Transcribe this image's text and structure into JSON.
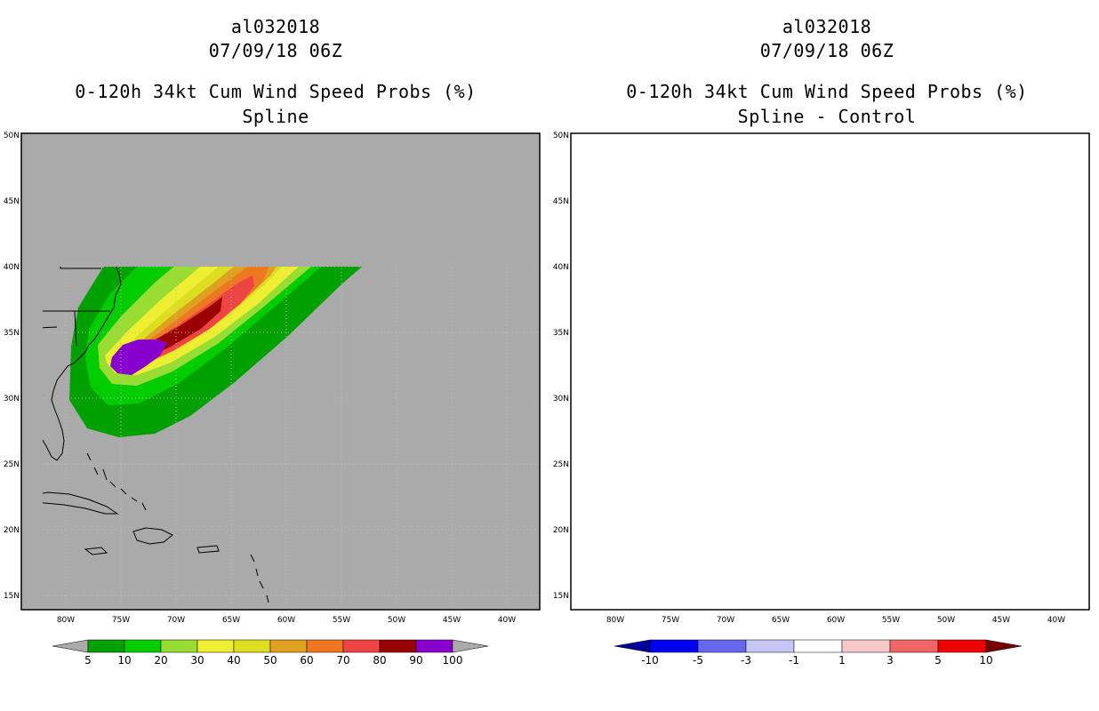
{
  "left": {
    "title1": "al032018",
    "title2": "07/09/18 06Z",
    "title3": "0-120h 34kt Cum Wind Speed Probs (%)",
    "title4": "Spline",
    "colorbar": {
      "colors": [
        "#00a000",
        "#00cc00",
        "#99dd33",
        "#eeee33",
        "#dddd22",
        "#e0a020",
        "#ee7722",
        "#ee4444",
        "#990000",
        "#8800cc"
      ],
      "labels": [
        "5",
        "10",
        "20",
        "30",
        "40",
        "50",
        "60",
        "70",
        "80",
        "90",
        "100"
      ]
    }
  },
  "right": {
    "title1": "al032018",
    "title2": "07/09/18 06Z",
    "title3": "0-120h 34kt Cum Wind Speed Probs (%)",
    "title4": "Spline - Control",
    "colorbar": {
      "colors": [
        "#0000ee",
        "#6666ee",
        "#c6c6f6",
        "#ffffff",
        "#f8c8c8",
        "#f06666",
        "#ee0000"
      ],
      "labels": [
        "-10",
        "-5",
        "-3",
        "-1",
        "1",
        "3",
        "5",
        "10"
      ]
    }
  },
  "axes": {
    "lat_labels": [
      "50N",
      "45N",
      "40N",
      "35N",
      "30N",
      "25N",
      "20N",
      "15N"
    ],
    "lon_labels": [
      "80W",
      "75W",
      "70W",
      "65W",
      "60W",
      "55W",
      "50W",
      "45W",
      "40W"
    ]
  },
  "colors": {
    "ocean_left": "#aaaaaa",
    "land_outline": "#000000",
    "grid": "#bbbbbb"
  }
}
